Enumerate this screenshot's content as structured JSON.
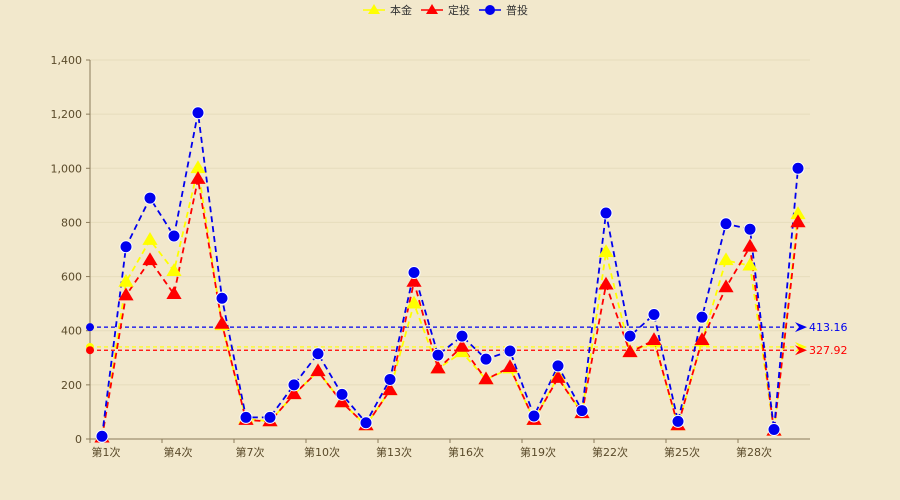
{
  "chart_data": {
    "type": "line",
    "categories": [
      "第1次",
      "第2次",
      "第3次",
      "第4次",
      "第5次",
      "第6次",
      "第7次",
      "第8次",
      "第9次",
      "第10次",
      "第11次",
      "第12次",
      "第13次",
      "第14次",
      "第15次",
      "第16次",
      "第17次",
      "第18次",
      "第19次",
      "第20次",
      "第21次",
      "第22次",
      "第23次",
      "第24次",
      "第25次",
      "第26次",
      "第27次",
      "第28次",
      "第29次",
      "第30次"
    ],
    "x_tick_labels": [
      "第1次",
      "第4次",
      "第7次",
      "第10次",
      "第13次",
      "第16次",
      "第19次",
      "第22次",
      "第25次",
      "第28次"
    ],
    "ylim": [
      0,
      1400
    ],
    "y_ticks": [
      0,
      200,
      400,
      600,
      800,
      1000,
      1200,
      1400
    ],
    "y_tick_labels": [
      "0",
      "200",
      "400",
      "600",
      "800",
      "1,000",
      "1,200",
      "1,400"
    ],
    "legend_position": "top-center",
    "series": [
      {
        "name": "本金",
        "color": "#ffff00",
        "marker": "triangle",
        "values": [
          5,
          580,
          735,
          620,
          1000,
          420,
          75,
          65,
          165,
          250,
          135,
          50,
          180,
          500,
          260,
          320,
          220,
          260,
          70,
          230,
          95,
          690,
          320,
          360,
          50,
          360,
          660,
          640,
          30,
          830
        ]
      },
      {
        "name": "定投",
        "color": "#ff0000",
        "marker": "triangle",
        "values": [
          5,
          530,
          660,
          535,
          960,
          425,
          70,
          65,
          165,
          250,
          135,
          50,
          180,
          580,
          260,
          340,
          220,
          265,
          70,
          225,
          95,
          570,
          320,
          365,
          50,
          365,
          560,
          710,
          30,
          800
        ]
      },
      {
        "name": "普投",
        "color": "#0000ee",
        "marker": "circle",
        "values": [
          10,
          710,
          890,
          750,
          1205,
          520,
          80,
          80,
          200,
          315,
          165,
          60,
          220,
          615,
          310,
          380,
          295,
          325,
          85,
          270,
          105,
          835,
          380,
          460,
          65,
          450,
          795,
          775,
          35,
          1000
        ]
      }
    ],
    "average_lines": [
      {
        "series": "普投",
        "value": 413.16,
        "label": "413.16",
        "color": "#0000ee"
      },
      {
        "series": "本金",
        "value": 340,
        "label": "",
        "color": "#ffff00"
      },
      {
        "series": "定投",
        "value": 327.92,
        "label": "327.92",
        "color": "#ff0000"
      }
    ]
  }
}
